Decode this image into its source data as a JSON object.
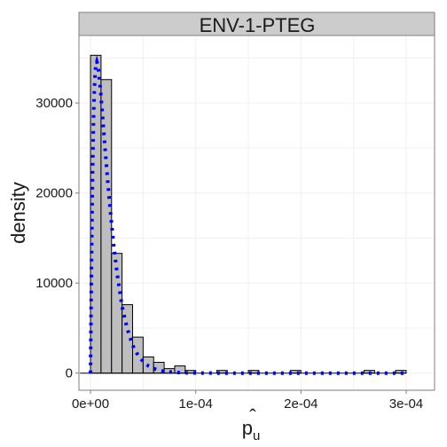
{
  "chart_data": {
    "type": "bar",
    "facet_label": "ENV-1-PTEG",
    "xlabel": "p̂u",
    "xlabel_base": "p",
    "xlabel_hat": "ˆ",
    "xlabel_sub": "u",
    "ylabel": "density",
    "xlim": [
      -1.1e-05,
      0.000327
    ],
    "ylim": [
      -1900,
      37500
    ],
    "grid": true,
    "x_ticks": [
      0,
      0.0001,
      0.0002,
      0.0003
    ],
    "x_tick_labels": [
      "0e+00",
      "1e-04",
      "2e-04",
      "3e-04"
    ],
    "y_ticks": [
      0,
      10000,
      20000,
      30000
    ],
    "y_tick_labels": [
      "0",
      "10000",
      "20000",
      "30000"
    ],
    "bin_width": 1e-05,
    "bins": [
      {
        "start": 0.0,
        "value": 35300
      },
      {
        "start": 1e-05,
        "value": 32600
      },
      {
        "start": 2e-05,
        "value": 13300
      },
      {
        "start": 3e-05,
        "value": 7600
      },
      {
        "start": 4e-05,
        "value": 4000
      },
      {
        "start": 5e-05,
        "value": 1800
      },
      {
        "start": 6e-05,
        "value": 1200
      },
      {
        "start": 7e-05,
        "value": 500
      },
      {
        "start": 8e-05,
        "value": 800
      },
      {
        "start": 9e-05,
        "value": 300
      },
      {
        "start": 0.0001,
        "value": 0
      },
      {
        "start": 0.00011,
        "value": 0
      },
      {
        "start": 0.00012,
        "value": 300
      },
      {
        "start": 0.00013,
        "value": 0
      },
      {
        "start": 0.00014,
        "value": 0
      },
      {
        "start": 0.00015,
        "value": 300
      },
      {
        "start": 0.00016,
        "value": 0
      },
      {
        "start": 0.00017,
        "value": 0
      },
      {
        "start": 0.00018,
        "value": 0
      },
      {
        "start": 0.00019,
        "value": 300
      },
      {
        "start": 0.0002,
        "value": 0
      },
      {
        "start": 0.00021,
        "value": 0
      },
      {
        "start": 0.00022,
        "value": 0
      },
      {
        "start": 0.00023,
        "value": 0
      },
      {
        "start": 0.00024,
        "value": 0
      },
      {
        "start": 0.00025,
        "value": 0
      },
      {
        "start": 0.00026,
        "value": 300
      },
      {
        "start": 0.00027,
        "value": 0
      },
      {
        "start": 0.00028,
        "value": 0
      },
      {
        "start": 0.00029,
        "value": 300
      }
    ],
    "baseline_x_range": [
      -1e-05,
      0.0003
    ],
    "density_curve": {
      "style": "dotted",
      "x": [
        0.0,
        1e-06,
        2e-06,
        3e-06,
        4e-06,
        5e-06,
        6e-06,
        7e-06,
        8e-06,
        1e-05,
        1.2e-05,
        1.4e-05,
        1.6e-05,
        1.8e-05,
        2e-05,
        2.2e-05,
        2.5e-05,
        3e-05,
        3.5e-05,
        4e-05,
        4.5e-05,
        5e-05,
        5.5e-05,
        6e-05,
        7e-05,
        8e-05,
        9e-05,
        0.0001,
        0.00012,
        0.00015,
        0.0002,
        0.00025,
        0.0003
      ],
      "y": [
        0,
        13000,
        22500,
        29000,
        32500,
        34200,
        34600,
        34200,
        33300,
        30700,
        27700,
        24700,
        21800,
        19100,
        16600,
        14300,
        11300,
        7400,
        4900,
        3100,
        2000,
        1300,
        800,
        500,
        200,
        80,
        30,
        10,
        0,
        0,
        0,
        0,
        0
      ]
    },
    "colors": {
      "bar_fill": "#bebebe",
      "bar_stroke": "#000000",
      "curve": "#0000ff",
      "strip_fill": "#cccccc",
      "strip_stroke": "#7f7f7f",
      "panel_border": "#7f7f7f",
      "grid": "#f0f0f0"
    }
  }
}
